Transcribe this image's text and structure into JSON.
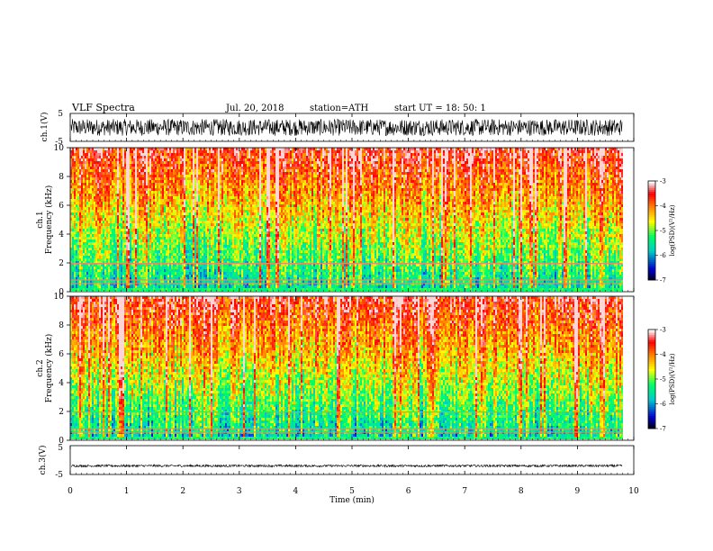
{
  "header": {
    "title": "VLF  Spectra",
    "date": "Jul.  20,  2018",
    "station": "station=ATH",
    "start": "start  UT  =    18: 50: 1"
  },
  "chart_data": [
    {
      "type": "line",
      "panel": "ch1-waveform",
      "ylabel": "ch.1(V)",
      "ylim": [
        -5,
        5
      ],
      "yticks": [
        "5",
        "-5"
      ],
      "xlim": [
        0,
        10
      ],
      "color": "#000000",
      "description_values": {
        "mean": 0,
        "amplitude_range": [
          -3,
          3
        ]
      }
    },
    {
      "type": "heatmap",
      "panel": "ch1-spectrogram",
      "ylabel_top": "ch.1",
      "ylabel": "Frequency  (kHz)",
      "ylim": [
        0,
        10
      ],
      "yticks": [
        "0",
        "2",
        "4",
        "6",
        "8",
        "10"
      ],
      "xlim": [
        0,
        10
      ],
      "colorbar": {
        "label": "log(PSD)(V²/Hz)",
        "range": [
          -7,
          -3
        ],
        "ticks": [
          "-3",
          "-4",
          "-5",
          "-6",
          "-7"
        ]
      }
    },
    {
      "type": "heatmap",
      "panel": "ch2-spectrogram",
      "ylabel_top": "ch.2",
      "ylabel": "Frequency  (kHz)",
      "ylim": [
        0,
        10
      ],
      "yticks": [
        "0",
        "2",
        "4",
        "6",
        "8",
        "10"
      ],
      "xlim": [
        0,
        10
      ],
      "colorbar": {
        "label": "log(PSD)(V²/Hz)",
        "range": [
          -7,
          -3
        ],
        "ticks": [
          "-3",
          "-4",
          "-5",
          "-6",
          "-7"
        ]
      }
    },
    {
      "type": "line",
      "panel": "ch3-waveform",
      "ylabel": "ch.3(V)",
      "ylim": [
        -5,
        5
      ],
      "yticks": [
        "5",
        "-5"
      ],
      "xlim": [
        0,
        10
      ],
      "xlabel": "Time  (min)",
      "xticks": [
        "0",
        "1",
        "2",
        "3",
        "4",
        "5",
        "6",
        "7",
        "8",
        "9",
        "10"
      ],
      "color": "#000000",
      "description_values": {
        "mean": -2,
        "amplitude_range": [
          -2.4,
          -1.6
        ]
      }
    }
  ],
  "colors": {
    "colormap": [
      "#000000",
      "#0000cc",
      "#00cccc",
      "#00ff00",
      "#ffff00",
      "#ff8000",
      "#ff0000",
      "#ffffff"
    ],
    "stripe": "#e09060"
  }
}
